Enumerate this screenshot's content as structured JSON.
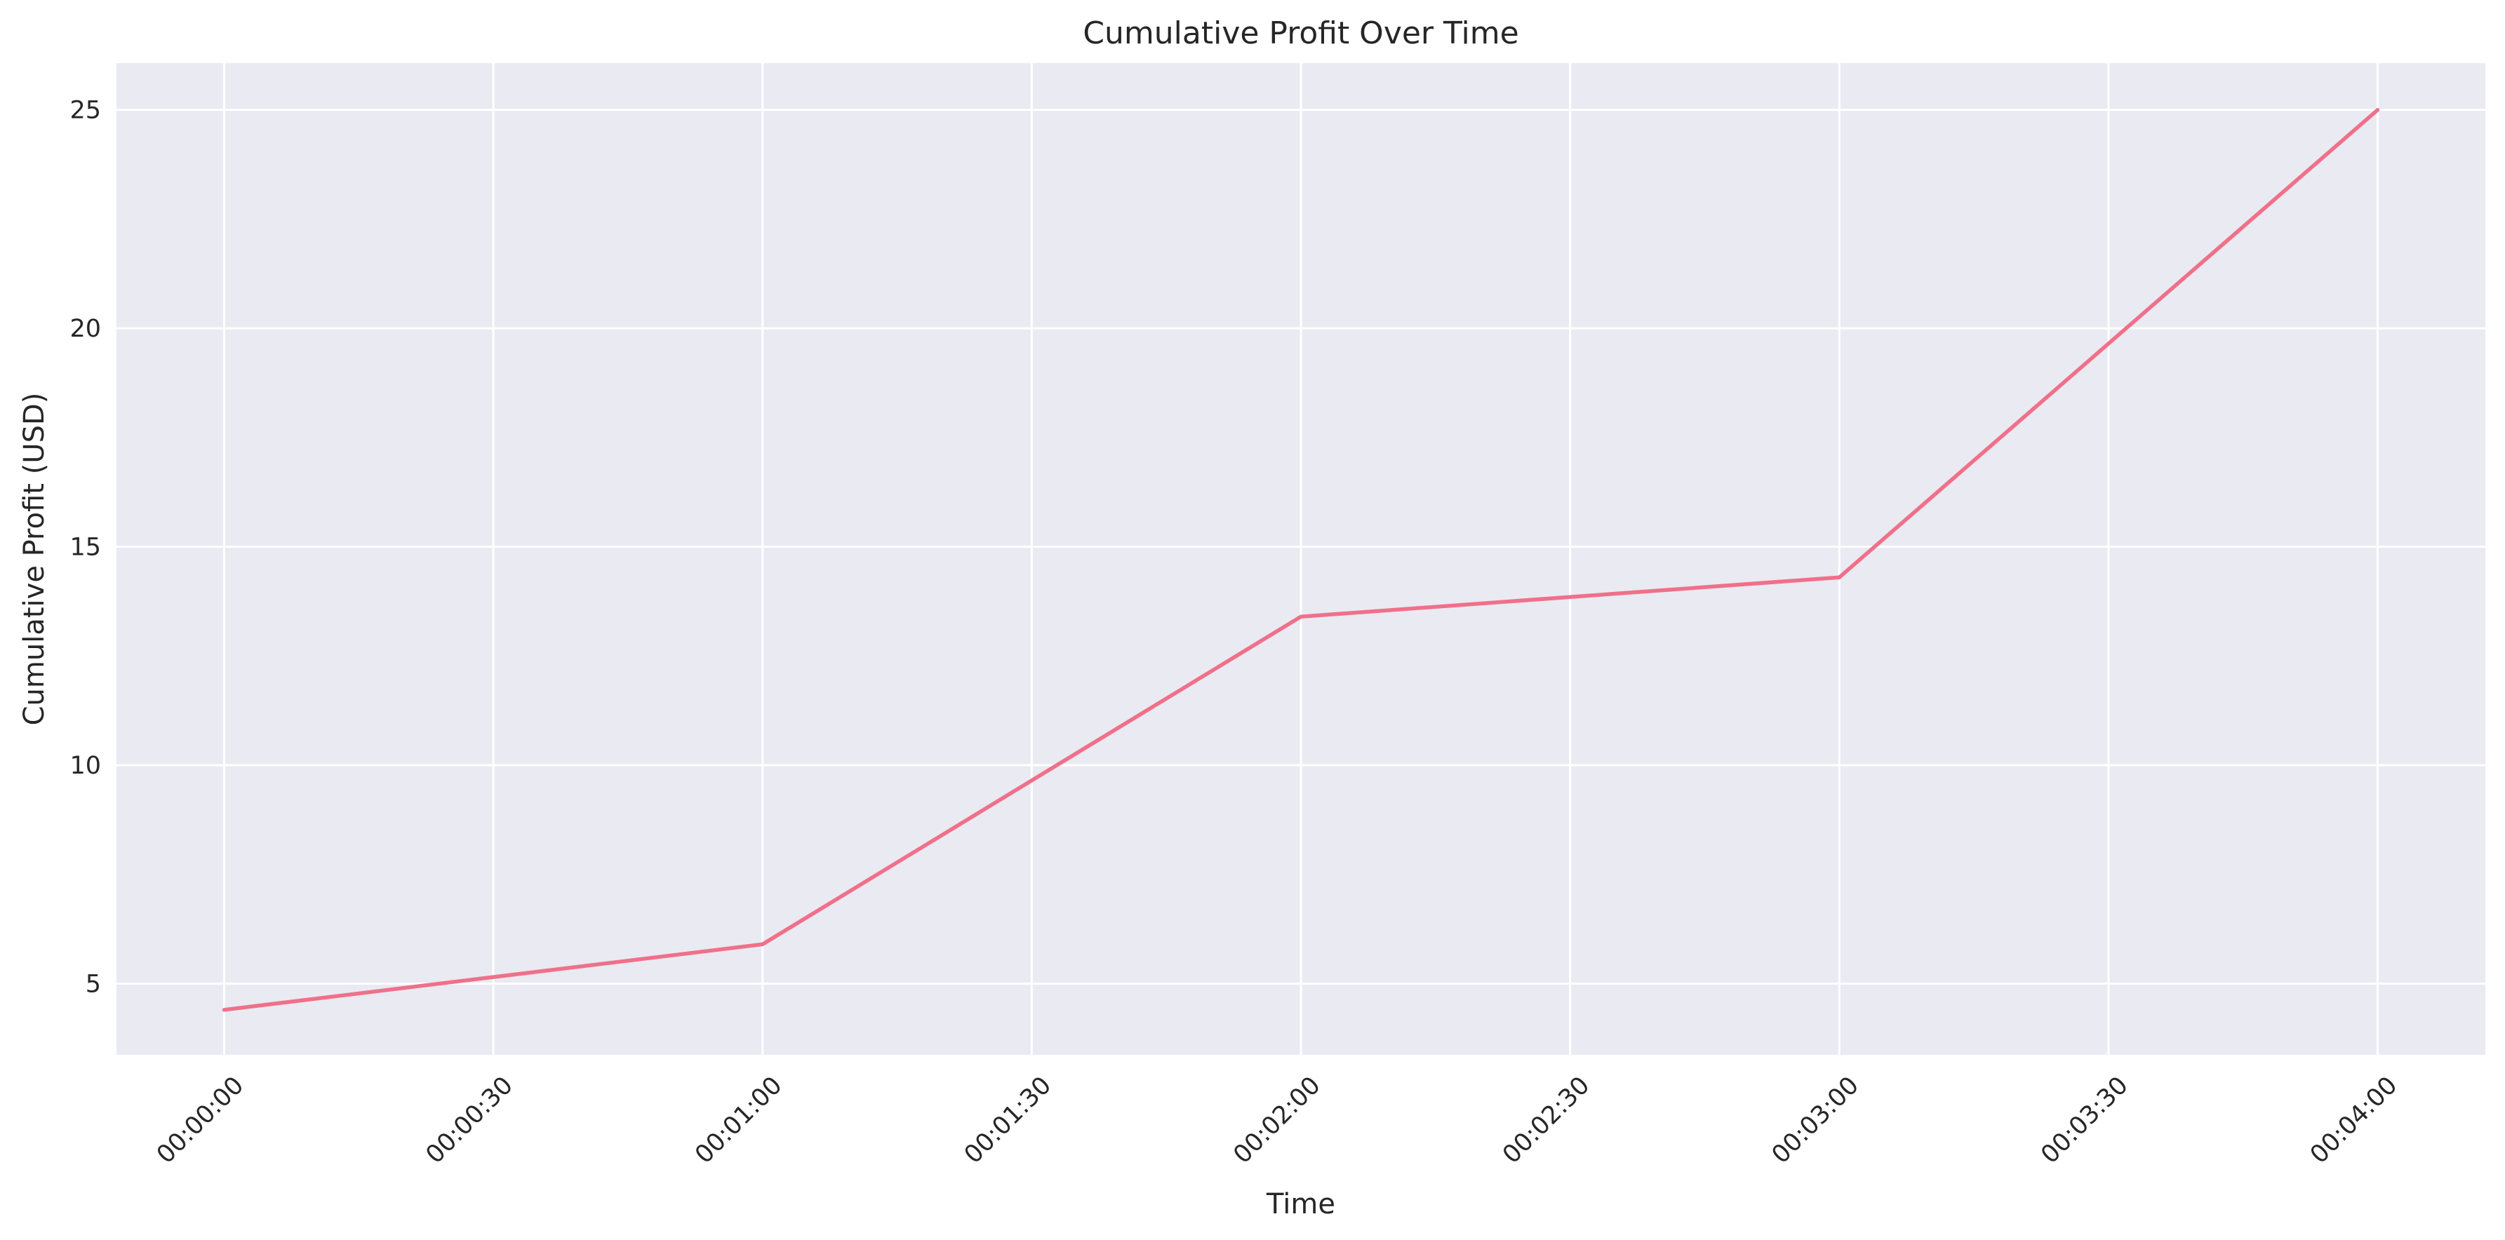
{
  "chart_data": {
    "type": "line",
    "title": "Cumulative Profit Over Time",
    "xlabel": "Time",
    "ylabel": "Cumulative Profit (USD)",
    "x": [
      "00:00:00",
      "00:01:00",
      "00:02:00",
      "00:03:00",
      "00:04:00"
    ],
    "series": [
      {
        "values": [
          4.4,
          5.9,
          13.4,
          14.3,
          25.0
        ],
        "color": "#f0708a"
      }
    ],
    "x_ticks": [
      "00:00:00",
      "00:00:30",
      "00:01:00",
      "00:01:30",
      "00:02:00",
      "00:02:30",
      "00:03:00",
      "00:03:30",
      "00:04:00"
    ],
    "y_ticks": [
      5,
      10,
      15,
      20,
      25
    ],
    "xlim": [
      "-00:00:12",
      "00:04:12"
    ],
    "ylim": [
      3.37,
      26.07
    ],
    "grid": true,
    "x_tick_rotation": 45,
    "background_color": "#eaeaf2",
    "grid_color": "#ffffff"
  }
}
